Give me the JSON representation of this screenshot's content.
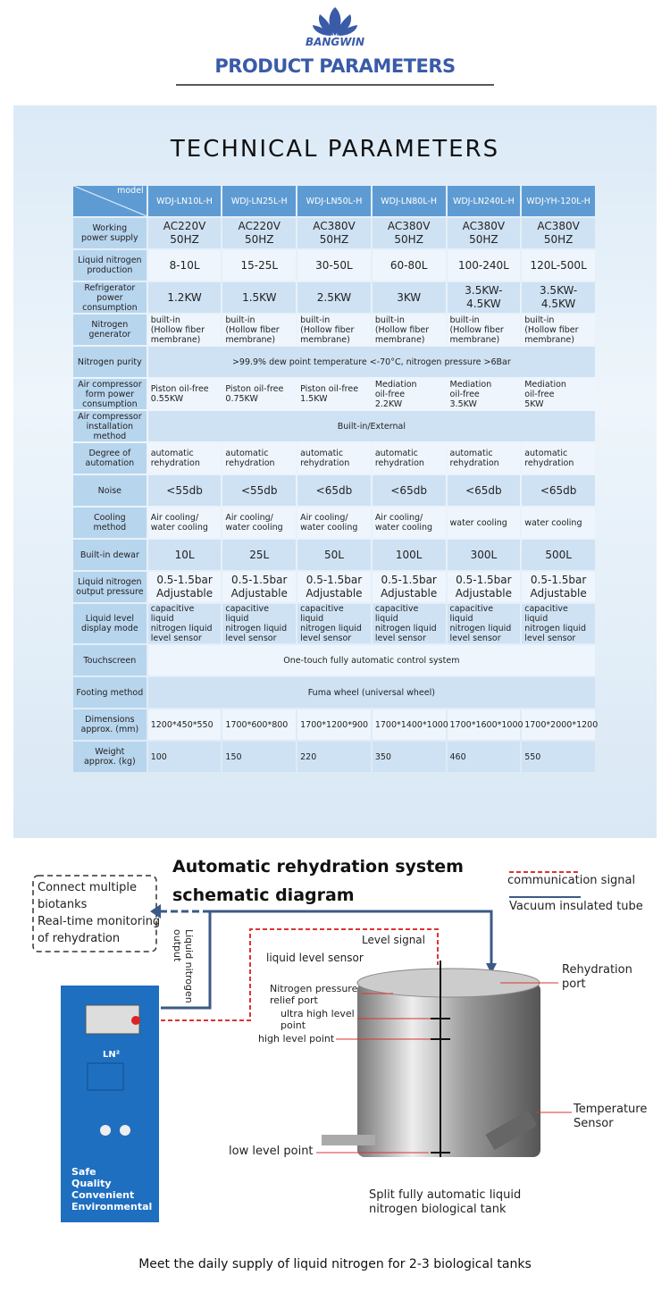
{
  "brand": "BANGWIN",
  "header": {
    "title": "PRODUCT PARAMETERS"
  },
  "section_title": "TECHNICAL PARAMETERS",
  "table": {
    "corner": "model",
    "header": [
      "WDJ-LN10L-H",
      "WDJ-LN25L-H",
      "WDJ-LN50L-H",
      "WDJ-LN80L-H",
      "WDJ-LN240L-H",
      "WDJ-YH-120L-H"
    ],
    "rows": [
      {
        "label": "Working\npower supply",
        "cells": [
          "AC220V\n50HZ",
          "AC220V\n50HZ",
          "AC380V\n50HZ",
          "AC380V\n50HZ",
          "AC380V\n50HZ",
          "AC380V\n50HZ"
        ]
      },
      {
        "label": "Liquid nitrogen\nproduction",
        "cells": [
          "8-10L",
          "15-25L",
          "30-50L",
          "60-80L",
          "100-240L",
          "120L-500L"
        ]
      },
      {
        "label": "Refrigerator\npower\nconsumption",
        "cells": [
          "1.2KW",
          "1.5KW",
          "2.5KW",
          "3KW",
          "3.5KW-4.5KW",
          "3.5KW-4.5KW"
        ]
      },
      {
        "label": "Nitrogen\ngenerator",
        "cells": [
          "built-in\n(Hollow fiber\nmembrane)",
          "built-in\n(Hollow fiber\nmembrane)",
          "built-in\n(Hollow fiber\nmembrane)",
          "built-in\n(Hollow fiber\nmembrane)",
          "built-in\n(Hollow fiber\nmembrane)",
          "built-in\n(Hollow fiber\nmembrane)"
        ]
      },
      {
        "label": "Nitrogen purity",
        "cells": [
          ">99.9% dew point temperature <-70°C, nitrogen pressure >6Bar"
        ]
      },
      {
        "label": "Air compressor\nform power\nconsumption",
        "cells": [
          "Piston oil-free\n0.55KW",
          "Piston oil-free\n0.75KW",
          "Piston oil-free\n1.5KW",
          "Mediation\noil-free\n2.2KW",
          "Mediation\noil-free\n3.5KW",
          "Mediation\noil-free\n5KW"
        ]
      },
      {
        "label": "Air compressor\ninstallation\nmethod",
        "cells": [
          "Built-in/External"
        ]
      },
      {
        "label": "Degree of\nautomation",
        "cells": [
          "automatic\nrehydration",
          "automatic\nrehydration",
          "automatic\nrehydration",
          "automatic\nrehydration",
          "automatic\nrehydration",
          "automatic\nrehydration"
        ]
      },
      {
        "label": "Noise",
        "cells": [
          "<55db",
          "<55db",
          "<65db",
          "<65db",
          "<65db",
          "<65db"
        ]
      },
      {
        "label": "Cooling\nmethod",
        "cells": [
          "Air cooling/\nwater cooling",
          "Air cooling/\nwater cooling",
          "Air cooling/\nwater cooling",
          "Air cooling/\nwater cooling",
          "water cooling",
          "water cooling"
        ]
      },
      {
        "label": "Built-in dewar",
        "cells": [
          "10L",
          "25L",
          "50L",
          "100L",
          "300L",
          "500L"
        ]
      },
      {
        "label": "Liquid nitrogen\noutput pressure",
        "cells": [
          "0.5-1.5bar\nAdjustable",
          "0.5-1.5bar\nAdjustable",
          "0.5-1.5bar\nAdjustable",
          "0.5-1.5bar\nAdjustable",
          "0.5-1.5bar\nAdjustable",
          "0.5-1.5bar\nAdjustable"
        ]
      },
      {
        "label": "Liquid level\ndisplay mode",
        "cells": [
          "capacitive liquid\nnitrogen liquid\nlevel sensor",
          "capacitive liquid\nnitrogen liquid\nlevel sensor",
          "capacitive liquid\nnitrogen liquid\nlevel sensor",
          "capacitive liquid\nnitrogen liquid\nlevel sensor",
          "capacitive liquid\nnitrogen liquid\nlevel sensor",
          "capacitive liquid\nnitrogen liquid\nlevel sensor"
        ]
      },
      {
        "label": "Touchscreen",
        "cells": [
          "One-touch fully automatic control system"
        ]
      },
      {
        "label": "Footing method",
        "cells": [
          "Fuma wheel (universal wheel)"
        ]
      },
      {
        "label": "Dimensions\napprox. (mm)",
        "cells": [
          "1200*450*550",
          "1700*600*800",
          "1700*1200*900",
          "1700*1400*1000",
          "1700*1600*1000",
          "1700*2000*1200"
        ]
      },
      {
        "label": "Weight\napprox. (kg)",
        "cells": [
          "100",
          "150",
          "220",
          "350",
          "460",
          "550"
        ]
      }
    ]
  },
  "diagram": {
    "title": "Automatic rehydration system\nschematic diagram",
    "legend": [
      "communication signal",
      "Vacuum insulated tube"
    ],
    "box": "Connect multiple\nbiotanks\nReal-time monitoring\nof rehydration",
    "output": "Liquid nitrogen\noutput",
    "labels": [
      "Level signal",
      "liquid level sensor",
      "Nitrogen pressure\nrelief port",
      "ultra high level\npoint",
      "high level point",
      "low level point",
      "Rehydration\nport",
      "Temperature\nSensor",
      "Split fully automatic liquid\nnitrogen biological tank"
    ],
    "cabinet": [
      "LN²",
      "Safe\nQuality\nConvenient\nEnvironmental"
    ],
    "footer": "Meet the daily supply of liquid nitrogen for 2-3 biological tanks"
  }
}
